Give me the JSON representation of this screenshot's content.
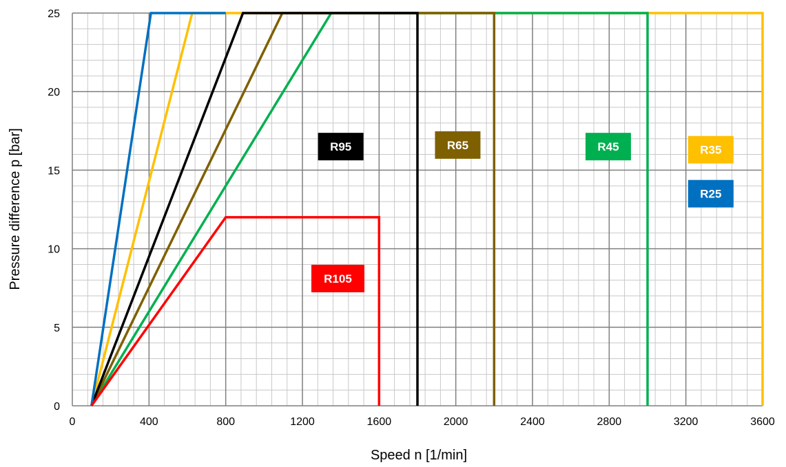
{
  "chart_data": {
    "type": "line",
    "xlabel": "Speed n [1/min]",
    "ylabel": "Pressure difference p [bar]",
    "xlim": [
      0,
      3600
    ],
    "ylim": [
      0,
      25
    ],
    "x_ticks": [
      "0",
      "400",
      "800",
      "1200",
      "1600",
      "2000",
      "2400",
      "2800",
      "3200",
      "3600"
    ],
    "y_ticks": [
      "0",
      "5",
      "10",
      "15",
      "20",
      "25"
    ],
    "x_tick_values": [
      0,
      400,
      800,
      1200,
      1600,
      2000,
      2400,
      2800,
      3200,
      3600
    ],
    "y_tick_values": [
      0,
      5,
      10,
      15,
      20,
      25
    ],
    "x_minor_step": 80,
    "y_minor_step": 1,
    "grid": true,
    "series": [
      {
        "name": "R35",
        "color": "#FFC000",
        "points": [
          [
            100,
            0
          ],
          [
            625,
            25
          ],
          [
            3600,
            25
          ],
          [
            3600,
            0
          ]
        ]
      },
      {
        "name": "R45",
        "color": "#00B050",
        "points": [
          [
            100,
            0
          ],
          [
            1350,
            25
          ],
          [
            3000,
            25
          ],
          [
            3000,
            0
          ]
        ]
      },
      {
        "name": "R65",
        "color": "#7F6000",
        "points": [
          [
            100,
            0
          ],
          [
            1095,
            25
          ],
          [
            2200,
            25
          ],
          [
            2200,
            0
          ]
        ]
      },
      {
        "name": "R95",
        "color": "#000000",
        "points": [
          [
            100,
            0
          ],
          [
            890,
            25
          ],
          [
            1800,
            25
          ],
          [
            1800,
            0
          ]
        ]
      },
      {
        "name": "R25",
        "color": "#0070C0",
        "points": [
          [
            100,
            0
          ],
          [
            410,
            25
          ],
          [
            800,
            25
          ]
        ]
      },
      {
        "name": "R105",
        "color": "#FF0000",
        "points": [
          [
            100,
            0
          ],
          [
            800,
            12
          ],
          [
            1600,
            12
          ],
          [
            1600,
            0
          ]
        ]
      }
    ],
    "labels": [
      {
        "text": "R95",
        "color": "#000000",
        "x": 1400,
        "y": 16.5
      },
      {
        "text": "R65",
        "color": "#7F6000",
        "x": 2010,
        "y": 16.6
      },
      {
        "text": "R45",
        "color": "#00B050",
        "x": 2795,
        "y": 16.5
      },
      {
        "text": "R35",
        "color": "#FFC000",
        "x": 3330,
        "y": 16.3
      },
      {
        "text": "R25",
        "color": "#0070C0",
        "x": 3330,
        "y": 13.5
      },
      {
        "text": "R105",
        "color": "#FF0000",
        "x": 1385,
        "y": 8.1
      }
    ]
  }
}
